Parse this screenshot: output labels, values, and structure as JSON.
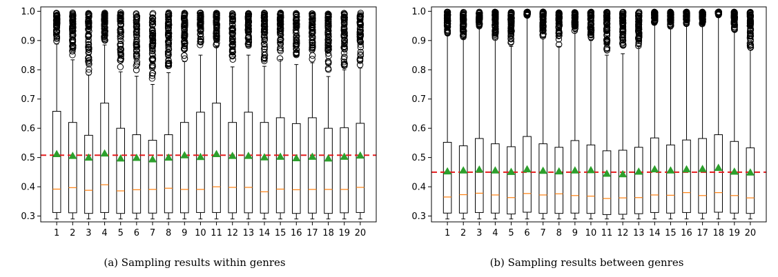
{
  "chart_data": [
    {
      "type": "box",
      "caption": "(a) Sampling results within genres",
      "categories": [
        "1",
        "2",
        "3",
        "4",
        "5",
        "6",
        "7",
        "8",
        "9",
        "10",
        "11",
        "12",
        "13",
        "14",
        "15",
        "16",
        "17",
        "18",
        "19",
        "20"
      ],
      "yticks": [
        "0.3",
        "0.4",
        "0.5",
        "0.6",
        "0.7",
        "0.8",
        "0.9",
        "1.0"
      ],
      "ylim": [
        0.28,
        1.015
      ],
      "reference_line": 0.508,
      "reference_line_color": "#e41a1c",
      "median_color": "#ff7f0e",
      "mean_marker_color": "#2ca02c",
      "grid": false,
      "boxes": [
        {
          "whisker_low": 0.29,
          "q1": 0.312,
          "median": 0.392,
          "q3": 0.658,
          "whisker_high": 0.888,
          "mean": 0.512,
          "flier_low": 0.888,
          "flier_high": 0.995
        },
        {
          "whisker_low": 0.29,
          "q1": 0.311,
          "median": 0.397,
          "q3": 0.62,
          "whisker_high": 0.834,
          "mean": 0.506,
          "flier_low": 0.834,
          "flier_high": 0.995
        },
        {
          "whisker_low": 0.29,
          "q1": 0.309,
          "median": 0.388,
          "q3": 0.576,
          "whisker_high": 0.782,
          "mean": 0.5,
          "flier_low": 0.782,
          "flier_high": 0.995
        },
        {
          "whisker_low": 0.29,
          "q1": 0.312,
          "median": 0.407,
          "q3": 0.686,
          "whisker_high": 0.885,
          "mean": 0.514,
          "flier_low": 0.885,
          "flier_high": 0.995
        },
        {
          "whisker_low": 0.29,
          "q1": 0.309,
          "median": 0.386,
          "q3": 0.6,
          "whisker_high": 0.793,
          "mean": 0.497,
          "flier_low": 0.793,
          "flier_high": 0.995
        },
        {
          "whisker_low": 0.29,
          "q1": 0.31,
          "median": 0.39,
          "q3": 0.578,
          "whisker_high": 0.778,
          "mean": 0.499,
          "flier_low": 0.778,
          "flier_high": 0.995
        },
        {
          "whisker_low": 0.29,
          "q1": 0.31,
          "median": 0.391,
          "q3": 0.559,
          "whisker_high": 0.75,
          "mean": 0.494,
          "flier_low": 0.75,
          "flier_high": 0.995
        },
        {
          "whisker_low": 0.29,
          "q1": 0.311,
          "median": 0.395,
          "q3": 0.578,
          "whisker_high": 0.79,
          "mean": 0.5,
          "flier_low": 0.79,
          "flier_high": 0.995
        },
        {
          "whisker_low": 0.29,
          "q1": 0.311,
          "median": 0.391,
          "q3": 0.62,
          "whisker_high": 0.828,
          "mean": 0.508,
          "flier_low": 0.828,
          "flier_high": 0.995
        },
        {
          "whisker_low": 0.29,
          "q1": 0.312,
          "median": 0.391,
          "q3": 0.655,
          "whisker_high": 0.85,
          "mean": 0.502,
          "flier_low": 0.85,
          "flier_high": 0.995
        },
        {
          "whisker_low": 0.29,
          "q1": 0.312,
          "median": 0.4,
          "q3": 0.686,
          "whisker_high": 0.88,
          "mean": 0.512,
          "flier_low": 0.88,
          "flier_high": 0.995
        },
        {
          "whisker_low": 0.29,
          "q1": 0.311,
          "median": 0.398,
          "q3": 0.62,
          "whisker_high": 0.81,
          "mean": 0.506,
          "flier_low": 0.81,
          "flier_high": 0.995
        },
        {
          "whisker_low": 0.29,
          "q1": 0.311,
          "median": 0.398,
          "q3": 0.655,
          "whisker_high": 0.85,
          "mean": 0.506,
          "flier_low": 0.85,
          "flier_high": 0.995
        },
        {
          "whisker_low": 0.29,
          "q1": 0.31,
          "median": 0.383,
          "q3": 0.62,
          "whisker_high": 0.812,
          "mean": 0.501,
          "flier_low": 0.812,
          "flier_high": 0.995
        },
        {
          "whisker_low": 0.29,
          "q1": 0.311,
          "median": 0.392,
          "q3": 0.636,
          "whisker_high": 0.835,
          "mean": 0.503,
          "flier_low": 0.835,
          "flier_high": 0.995
        },
        {
          "whisker_low": 0.29,
          "q1": 0.309,
          "median": 0.39,
          "q3": 0.616,
          "whisker_high": 0.818,
          "mean": 0.498,
          "flier_low": 0.818,
          "flier_high": 0.995
        },
        {
          "whisker_low": 0.29,
          "q1": 0.31,
          "median": 0.391,
          "q3": 0.636,
          "whisker_high": 0.824,
          "mean": 0.503,
          "flier_low": 0.824,
          "flier_high": 0.995
        },
        {
          "whisker_low": 0.29,
          "q1": 0.309,
          "median": 0.391,
          "q3": 0.6,
          "whisker_high": 0.777,
          "mean": 0.497,
          "flier_low": 0.777,
          "flier_high": 0.995
        },
        {
          "whisker_low": 0.29,
          "q1": 0.311,
          "median": 0.391,
          "q3": 0.602,
          "whisker_high": 0.8,
          "mean": 0.503,
          "flier_low": 0.8,
          "flier_high": 0.995
        },
        {
          "whisker_low": 0.29,
          "q1": 0.312,
          "median": 0.398,
          "q3": 0.617,
          "whisker_high": 0.806,
          "mean": 0.507,
          "flier_low": 0.806,
          "flier_high": 0.995
        }
      ]
    },
    {
      "type": "box",
      "caption": "(b) Sampling results between genres",
      "categories": [
        "1",
        "2",
        "3",
        "4",
        "5",
        "6",
        "7",
        "8",
        "9",
        "10",
        "11",
        "12",
        "13",
        "14",
        "15",
        "16",
        "17",
        "18",
        "19",
        "20"
      ],
      "yticks": [
        "0.3",
        "0.4",
        "0.5",
        "0.6",
        "0.7",
        "0.8",
        "0.9",
        "1.0"
      ],
      "ylim": [
        0.28,
        1.015
      ],
      "reference_line": 0.45,
      "reference_line_color": "#e41a1c",
      "median_color": "#ff7f0e",
      "mean_marker_color": "#2ca02c",
      "grid": false,
      "boxes": [
        {
          "whisker_low": 0.29,
          "q1": 0.31,
          "median": 0.365,
          "q3": 0.552,
          "whisker_high": 0.918,
          "mean": 0.453,
          "flier_low": 0.918,
          "flier_high": 0.998
        },
        {
          "whisker_low": 0.29,
          "q1": 0.31,
          "median": 0.373,
          "q3": 0.54,
          "whisker_high": 0.905,
          "mean": 0.456,
          "flier_low": 0.905,
          "flier_high": 0.998
        },
        {
          "whisker_low": 0.29,
          "q1": 0.312,
          "median": 0.378,
          "q3": 0.565,
          "whisker_high": 0.945,
          "mean": 0.459,
          "flier_low": 0.945,
          "flier_high": 0.998
        },
        {
          "whisker_low": 0.29,
          "q1": 0.31,
          "median": 0.372,
          "q3": 0.547,
          "whisker_high": 0.905,
          "mean": 0.456,
          "flier_low": 0.905,
          "flier_high": 0.998
        },
        {
          "whisker_low": 0.29,
          "q1": 0.307,
          "median": 0.363,
          "q3": 0.537,
          "whisker_high": 0.88,
          "mean": 0.451,
          "flier_low": 0.88,
          "flier_high": 0.998
        },
        {
          "whisker_low": 0.29,
          "q1": 0.313,
          "median": 0.377,
          "q3": 0.572,
          "whisker_high": 0.985,
          "mean": 0.46,
          "flier_low": 0.985,
          "flier_high": 0.998
        },
        {
          "whisker_low": 0.29,
          "q1": 0.309,
          "median": 0.372,
          "q3": 0.547,
          "whisker_high": 0.91,
          "mean": 0.455,
          "flier_low": 0.91,
          "flier_high": 0.998
        },
        {
          "whisker_low": 0.29,
          "q1": 0.309,
          "median": 0.376,
          "q3": 0.535,
          "whisker_high": 0.88,
          "mean": 0.453,
          "flier_low": 0.88,
          "flier_high": 0.998
        },
        {
          "whisker_low": 0.29,
          "q1": 0.31,
          "median": 0.37,
          "q3": 0.558,
          "whisker_high": 0.93,
          "mean": 0.456,
          "flier_low": 0.93,
          "flier_high": 0.998
        },
        {
          "whisker_low": 0.29,
          "q1": 0.309,
          "median": 0.368,
          "q3": 0.543,
          "whisker_high": 0.9,
          "mean": 0.457,
          "flier_low": 0.9,
          "flier_high": 0.998
        },
        {
          "whisker_low": 0.29,
          "q1": 0.305,
          "median": 0.36,
          "q3": 0.523,
          "whisker_high": 0.85,
          "mean": 0.445,
          "flier_low": 0.85,
          "flier_high": 0.998
        },
        {
          "whisker_low": 0.29,
          "q1": 0.306,
          "median": 0.362,
          "q3": 0.525,
          "whisker_high": 0.855,
          "mean": 0.443,
          "flier_low": 0.855,
          "flier_high": 0.998
        },
        {
          "whisker_low": 0.29,
          "q1": 0.308,
          "median": 0.363,
          "q3": 0.535,
          "whisker_high": 0.88,
          "mean": 0.452,
          "flier_low": 0.88,
          "flier_high": 0.998
        },
        {
          "whisker_low": 0.29,
          "q1": 0.312,
          "median": 0.372,
          "q3": 0.567,
          "whisker_high": 0.96,
          "mean": 0.46,
          "flier_low": 0.96,
          "flier_high": 0.998
        },
        {
          "whisker_low": 0.29,
          "q1": 0.31,
          "median": 0.371,
          "q3": 0.543,
          "whisker_high": 0.94,
          "mean": 0.456,
          "flier_low": 0.94,
          "flier_high": 0.998
        },
        {
          "whisker_low": 0.29,
          "q1": 0.312,
          "median": 0.38,
          "q3": 0.56,
          "whisker_high": 0.955,
          "mean": 0.46,
          "flier_low": 0.955,
          "flier_high": 0.998
        },
        {
          "whisker_low": 0.29,
          "q1": 0.31,
          "median": 0.37,
          "q3": 0.565,
          "whisker_high": 0.955,
          "mean": 0.461,
          "flier_low": 0.955,
          "flier_high": 0.998
        },
        {
          "whisker_low": 0.29,
          "q1": 0.313,
          "median": 0.38,
          "q3": 0.578,
          "whisker_high": 0.985,
          "mean": 0.465,
          "flier_low": 0.985,
          "flier_high": 0.998
        },
        {
          "whisker_low": 0.29,
          "q1": 0.31,
          "median": 0.37,
          "q3": 0.555,
          "whisker_high": 0.93,
          "mean": 0.452,
          "flier_low": 0.93,
          "flier_high": 0.998
        },
        {
          "whisker_low": 0.29,
          "q1": 0.309,
          "median": 0.362,
          "q3": 0.533,
          "whisker_high": 0.868,
          "mean": 0.449,
          "flier_low": 0.868,
          "flier_high": 0.998
        }
      ]
    }
  ]
}
